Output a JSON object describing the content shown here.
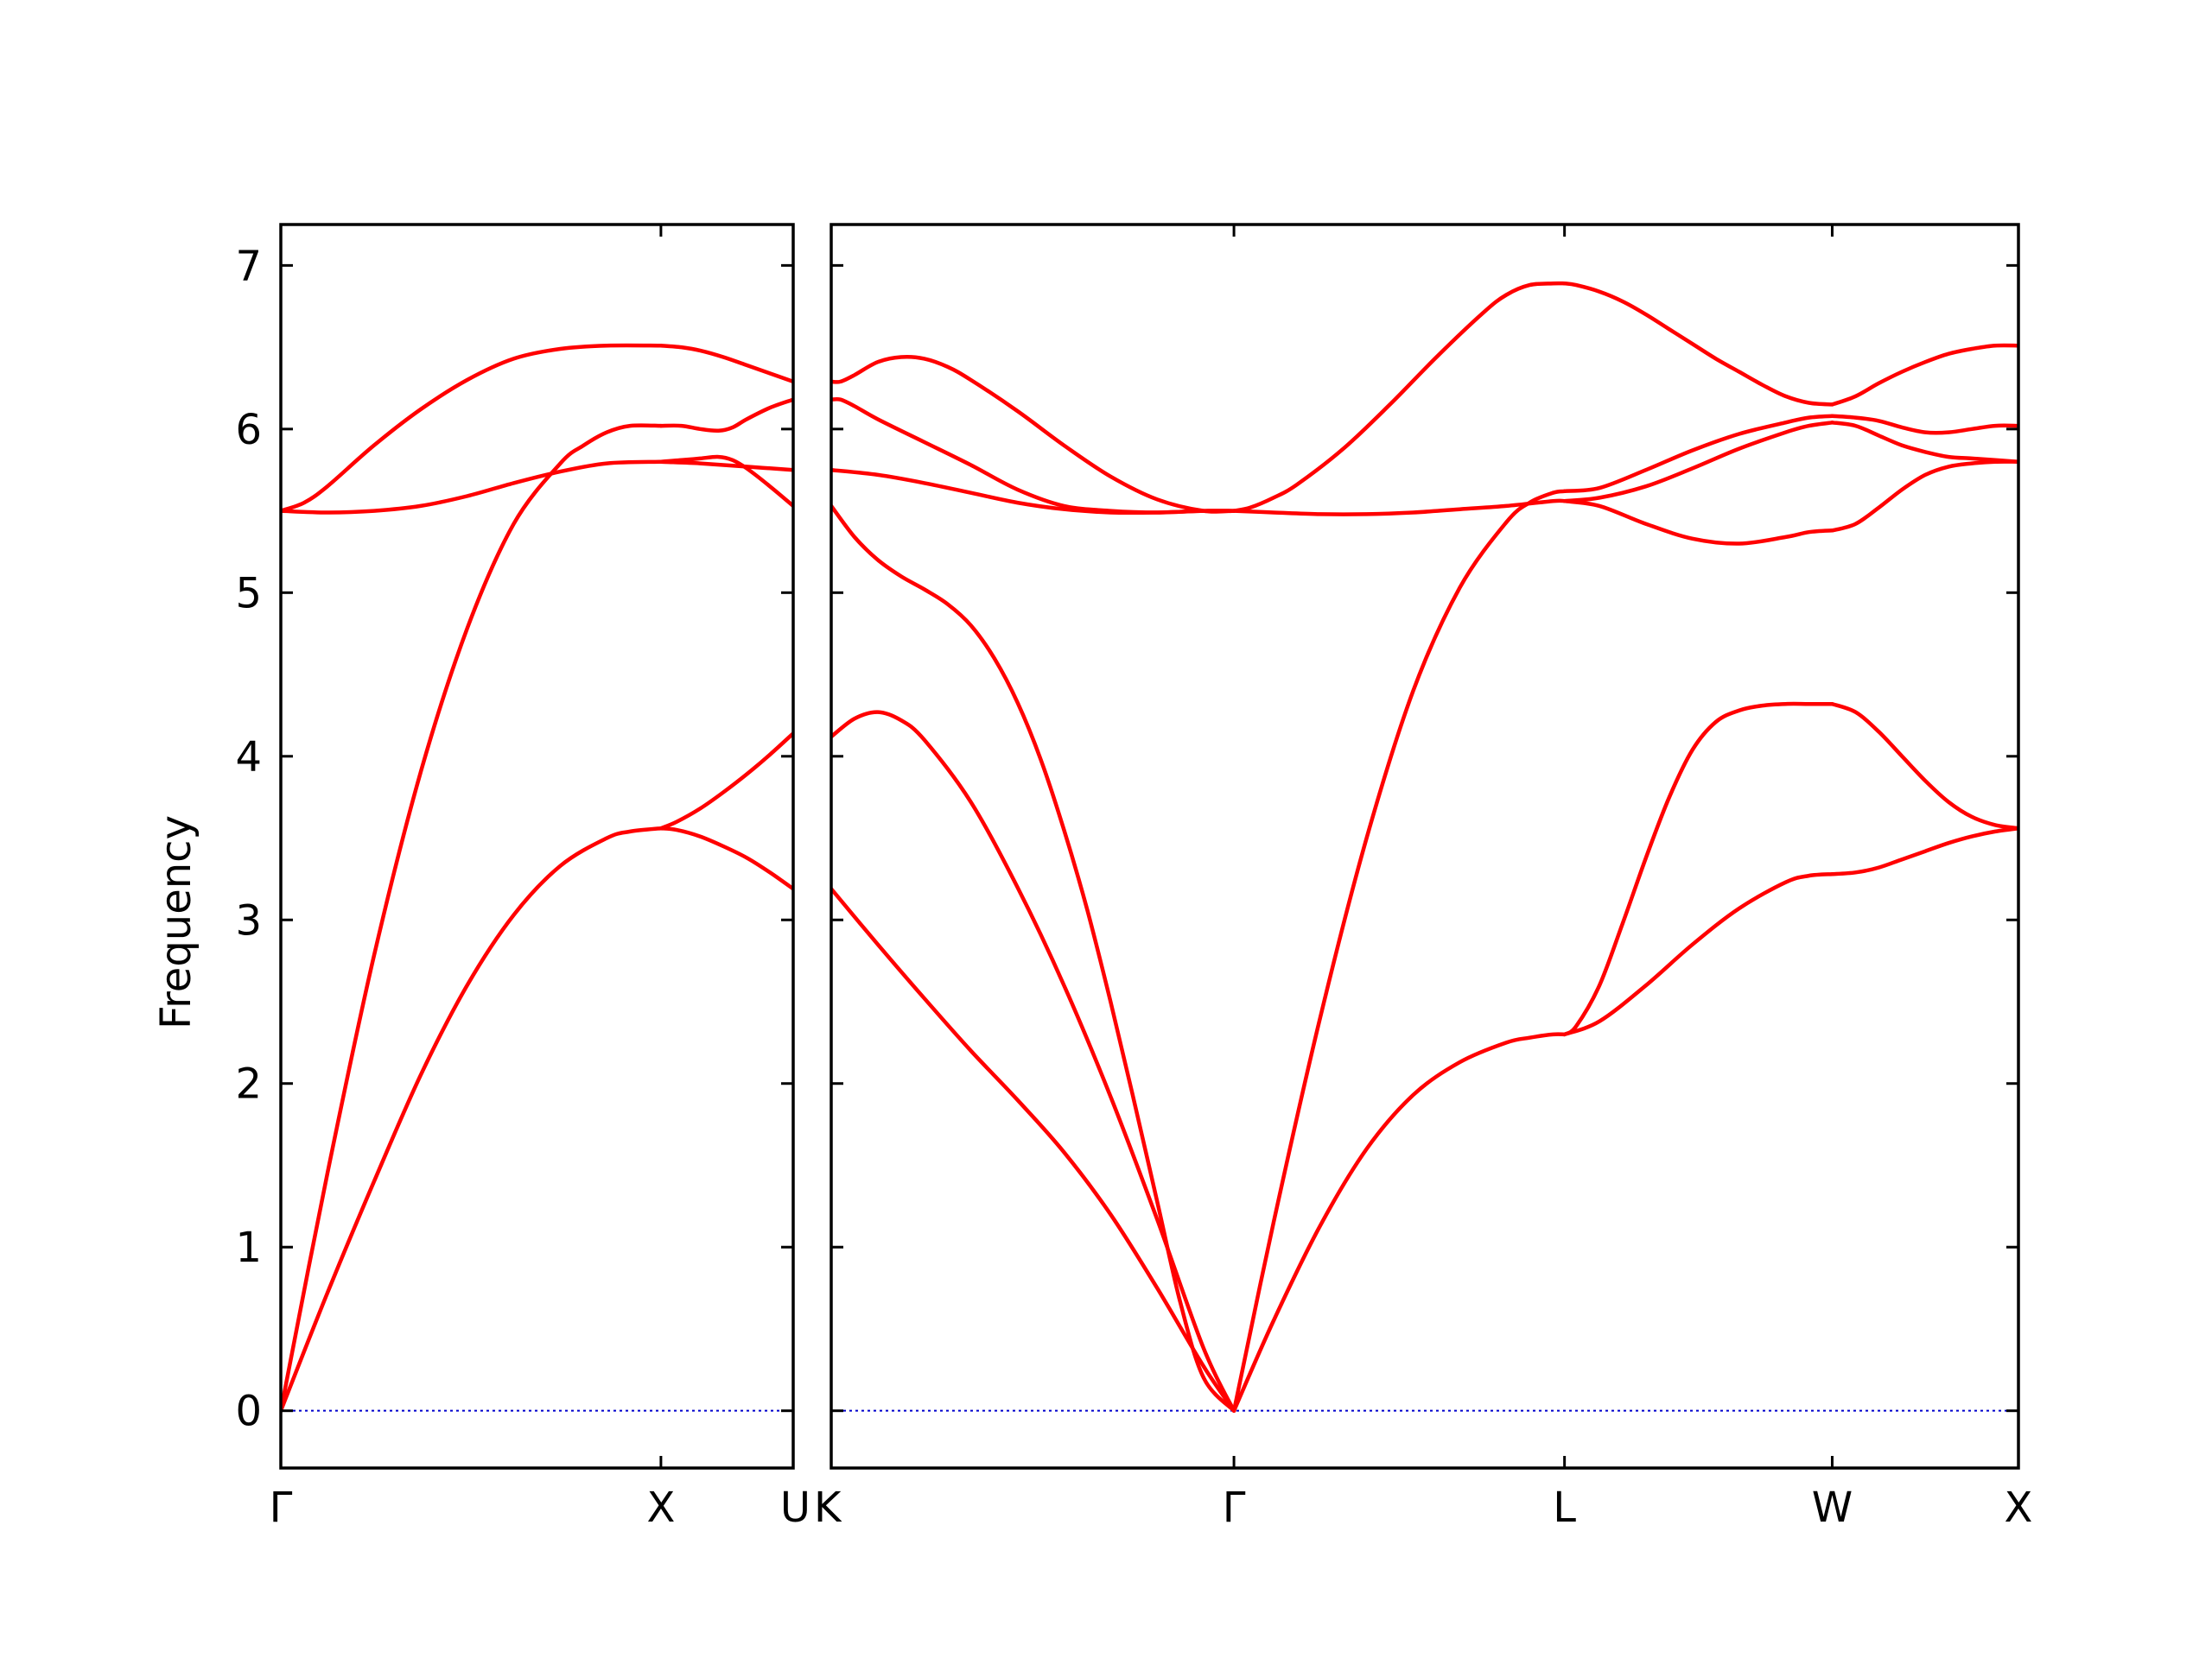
{
  "chart_data": {
    "type": "line",
    "ylabel": "Frequency",
    "ylim": [
      -0.35,
      7.25
    ],
    "yticks": [
      "0",
      "1",
      "2",
      "3",
      "4",
      "5",
      "6",
      "7"
    ],
    "grid": false,
    "colors": {
      "band": "#ff0000",
      "zero_line": "#0000cc",
      "frame": "#000000"
    },
    "panels": [
      {
        "path": "Γ-X-U",
        "xlim": [
          0,
          1.1
        ],
        "ticks": [
          {
            "x": 0,
            "label": "Γ"
          },
          {
            "x": 0.816,
            "label": "X"
          },
          {
            "x": 1.1,
            "label": "U"
          }
        ],
        "series": [
          {
            "x": [
              0,
              0.1,
              0.2,
              0.3,
              0.4,
              0.5,
              0.6,
              0.7,
              0.75,
              0.816
            ],
            "values": [
              0,
              0.72,
              1.4,
              2.05,
              2.6,
              3.03,
              3.33,
              3.5,
              3.54,
              3.56
            ]
          },
          {
            "x": [
              0,
              0.1,
              0.2,
              0.3,
              0.4,
              0.5,
              0.6,
              0.65,
              0.7,
              0.75,
              0.816
            ],
            "values": [
              0,
              1.45,
              2.78,
              3.9,
              4.78,
              5.42,
              5.79,
              5.9,
              5.98,
              6.02,
              6.02
            ]
          },
          {
            "x": [
              0,
              0.1,
              0.2,
              0.3,
              0.4,
              0.5,
              0.6,
              0.7,
              0.816
            ],
            "values": [
              5.5,
              5.49,
              5.5,
              5.53,
              5.59,
              5.67,
              5.74,
              5.79,
              5.8
            ]
          },
          {
            "x": [
              0,
              0.05,
              0.1,
              0.2,
              0.3,
              0.4,
              0.5,
              0.6,
              0.7,
              0.816
            ],
            "values": [
              5.5,
              5.55,
              5.65,
              5.9,
              6.12,
              6.3,
              6.43,
              6.49,
              6.51,
              6.51
            ]
          },
          {
            "x": [
              0.816,
              0.85,
              0.9,
              0.95,
              1.0,
              1.05,
              1.1
            ],
            "values": [
              3.56,
              3.6,
              3.68,
              3.78,
              3.89,
              4.01,
              4.14
            ]
          },
          {
            "x": [
              0.816,
              0.85,
              0.9,
              0.95,
              1.0,
              1.05,
              1.1
            ],
            "values": [
              3.56,
              3.55,
              3.51,
              3.45,
              3.38,
              3.29,
              3.19
            ]
          },
          {
            "x": [
              0.816,
              0.86,
              0.9,
              0.94,
              0.97,
              1.0,
              1.05,
              1.1
            ],
            "values": [
              6.02,
              6.02,
              6.0,
              5.99,
              6.01,
              6.06,
              6.13,
              6.18
            ]
          },
          {
            "x": [
              0.816,
              0.86,
              0.9,
              0.94,
              0.97,
              1.0,
              1.05,
              1.1
            ],
            "values": [
              5.8,
              5.81,
              5.82,
              5.83,
              5.81,
              5.76,
              5.65,
              5.53
            ]
          },
          {
            "x": [
              0.816,
              0.86,
              0.9,
              0.95,
              1.0,
              1.05,
              1.1
            ],
            "values": [
              6.51,
              6.5,
              6.48,
              6.44,
              6.39,
              6.34,
              6.29
            ]
          },
          {
            "x": [
              0.816,
              0.9,
              1.0,
              1.1
            ],
            "values": [
              5.8,
              5.79,
              5.77,
              5.75
            ]
          }
        ]
      },
      {
        "path": "K-Γ-L-W-X",
        "xlim": [
          0,
          2.55
        ],
        "ticks": [
          {
            "x": 0,
            "label": "K"
          },
          {
            "x": 0.865,
            "label": "Γ"
          },
          {
            "x": 1.575,
            "label": "L"
          },
          {
            "x": 2.15,
            "label": "W"
          },
          {
            "x": 2.55,
            "label": "X"
          }
        ],
        "series": [
          {
            "x": [
              0,
              0.1,
              0.2,
              0.3,
              0.4,
              0.5,
              0.6,
              0.7,
              0.8,
              0.865
            ],
            "values": [
              3.19,
              2.85,
              2.52,
              2.2,
              1.9,
              1.58,
              1.2,
              0.75,
              0.27,
              0
            ]
          },
          {
            "x": [
              0,
              0.05,
              0.1,
              0.15,
              0.2,
              0.3,
              0.4,
              0.5,
              0.6,
              0.7,
              0.8,
              0.865
            ],
            "values": [
              4.12,
              4.23,
              4.27,
              4.22,
              4.1,
              3.72,
              3.2,
              2.6,
              1.92,
              1.17,
              0.38,
              0
            ]
          },
          {
            "x": [
              0,
              0.05,
              0.1,
              0.15,
              0.2,
              0.25,
              0.3,
              0.35,
              0.4,
              0.45,
              0.5,
              0.55,
              0.6,
              0.65,
              0.7,
              0.75,
              0.8,
              0.865
            ],
            "values": [
              5.53,
              5.34,
              5.2,
              5.1,
              5.02,
              4.93,
              4.8,
              4.6,
              4.33,
              3.98,
              3.55,
              3.06,
              2.5,
              1.9,
              1.28,
              0.66,
              0.2,
              0
            ]
          },
          {
            "x": [
              0,
              0.1,
              0.2,
              0.3,
              0.4,
              0.5,
              0.6,
              0.7,
              0.8,
              0.865
            ],
            "values": [
              5.75,
              5.72,
              5.67,
              5.61,
              5.55,
              5.51,
              5.49,
              5.49,
              5.5,
              5.5
            ]
          },
          {
            "x": [
              0,
              0.02,
              0.05,
              0.1,
              0.2,
              0.3,
              0.4,
              0.5,
              0.6,
              0.7,
              0.8,
              0.865
            ],
            "values": [
              6.18,
              6.18,
              6.14,
              6.06,
              5.92,
              5.78,
              5.63,
              5.53,
              5.5,
              5.49,
              5.5,
              5.5
            ]
          },
          {
            "x": [
              0,
              0.02,
              0.05,
              0.1,
              0.15,
              0.2,
              0.25,
              0.3,
              0.4,
              0.5,
              0.6,
              0.7,
              0.8,
              0.865
            ],
            "values": [
              6.29,
              6.29,
              6.33,
              6.41,
              6.44,
              6.43,
              6.38,
              6.3,
              6.11,
              5.9,
              5.71,
              5.57,
              5.5,
              5.5
            ]
          },
          {
            "x": [
              0.865,
              0.95,
              1.05,
              1.15,
              1.25,
              1.35,
              1.45,
              1.5,
              1.55,
              1.575
            ],
            "values": [
              0,
              0.55,
              1.13,
              1.6,
              1.93,
              2.13,
              2.25,
              2.28,
              2.3,
              2.3
            ]
          },
          {
            "x": [
              0.865,
              0.95,
              1.05,
              1.15,
              1.25,
              1.35,
              1.45,
              1.5,
              1.55,
              1.575
            ],
            "values": [
              0,
              1.15,
              2.4,
              3.5,
              4.4,
              5.03,
              5.43,
              5.55,
              5.61,
              5.62
            ]
          },
          {
            "x": [
              0.865,
              0.95,
              1.05,
              1.15,
              1.25,
              1.35,
              1.45,
              1.55,
              1.575
            ],
            "values": [
              5.5,
              5.49,
              5.48,
              5.48,
              5.49,
              5.51,
              5.53,
              5.56,
              5.56
            ]
          },
          {
            "x": [
              0.865,
              0.9,
              0.95,
              1.0,
              1.1,
              1.2,
              1.3,
              1.4,
              1.45,
              1.5,
              1.55,
              1.575
            ],
            "values": [
              5.5,
              5.52,
              5.58,
              5.66,
              5.88,
              6.15,
              6.44,
              6.71,
              6.82,
              6.88,
              6.89,
              6.89
            ]
          },
          {
            "x": [
              1.575,
              1.6,
              1.65,
              1.7,
              1.75,
              1.8,
              1.85,
              1.9,
              1.95,
              2.0,
              2.05,
              2.1,
              2.15
            ],
            "values": [
              2.3,
              2.35,
              2.6,
              2.98,
              3.38,
              3.75,
              4.04,
              4.21,
              4.28,
              4.31,
              4.32,
              4.32,
              4.32
            ]
          },
          {
            "x": [
              1.575,
              1.65,
              1.75,
              1.85,
              1.95,
              2.05,
              2.1,
              2.15
            ],
            "values": [
              2.3,
              2.38,
              2.6,
              2.85,
              3.07,
              3.23,
              3.27,
              3.28
            ]
          },
          {
            "x": [
              1.575,
              1.65,
              1.75,
              1.85,
              1.95,
              2.05,
              2.1,
              2.15
            ],
            "values": [
              5.56,
              5.53,
              5.42,
              5.33,
              5.3,
              5.34,
              5.37,
              5.38
            ]
          },
          {
            "x": [
              1.575,
              1.65,
              1.75,
              1.85,
              1.95,
              2.05,
              2.1,
              2.15
            ],
            "values": [
              5.56,
              5.58,
              5.65,
              5.76,
              5.88,
              5.98,
              6.02,
              6.04
            ]
          },
          {
            "x": [
              1.575,
              1.65,
              1.75,
              1.85,
              1.95,
              2.05,
              2.1,
              2.15
            ],
            "values": [
              5.62,
              5.64,
              5.75,
              5.87,
              5.97,
              6.04,
              6.07,
              6.08
            ]
          },
          {
            "x": [
              1.575,
              1.6,
              1.65,
              1.7,
              1.75,
              1.8,
              1.85,
              1.9,
              1.95,
              2.0,
              2.05,
              2.1,
              2.15
            ],
            "values": [
              6.89,
              6.88,
              6.84,
              6.78,
              6.7,
              6.61,
              6.52,
              6.43,
              6.35,
              6.27,
              6.2,
              6.16,
              6.15
            ]
          },
          {
            "x": [
              2.15,
              2.2,
              2.25,
              2.3,
              2.35,
              2.4,
              2.45,
              2.5,
              2.55
            ],
            "values": [
              4.32,
              4.27,
              4.15,
              4.0,
              3.85,
              3.72,
              3.63,
              3.58,
              3.56
            ]
          },
          {
            "x": [
              2.15,
              2.2,
              2.25,
              2.3,
              2.35,
              2.4,
              2.45,
              2.5,
              2.55
            ],
            "values": [
              3.28,
              3.29,
              3.32,
              3.37,
              3.42,
              3.47,
              3.51,
              3.54,
              3.56
            ]
          },
          {
            "x": [
              2.15,
              2.2,
              2.25,
              2.3,
              2.35,
              2.4,
              2.45,
              2.5,
              2.55
            ],
            "values": [
              5.38,
              5.42,
              5.52,
              5.63,
              5.72,
              5.77,
              5.79,
              5.8,
              5.8
            ]
          },
          {
            "x": [
              2.15,
              2.2,
              2.25,
              2.3,
              2.35,
              2.4,
              2.45,
              2.5,
              2.55
            ],
            "values": [
              6.04,
              6.02,
              5.96,
              5.9,
              5.86,
              5.83,
              5.82,
              5.81,
              5.8
            ]
          },
          {
            "x": [
              2.15,
              2.2,
              2.25,
              2.3,
              2.35,
              2.4,
              2.45,
              2.5,
              2.55
            ],
            "values": [
              6.08,
              6.07,
              6.05,
              6.01,
              5.98,
              5.98,
              6.0,
              6.02,
              6.02
            ]
          },
          {
            "x": [
              2.15,
              2.2,
              2.25,
              2.3,
              2.35,
              2.4,
              2.45,
              2.5,
              2.55
            ],
            "values": [
              6.15,
              6.2,
              6.28,
              6.35,
              6.41,
              6.46,
              6.49,
              6.51,
              6.51
            ]
          }
        ]
      }
    ]
  }
}
